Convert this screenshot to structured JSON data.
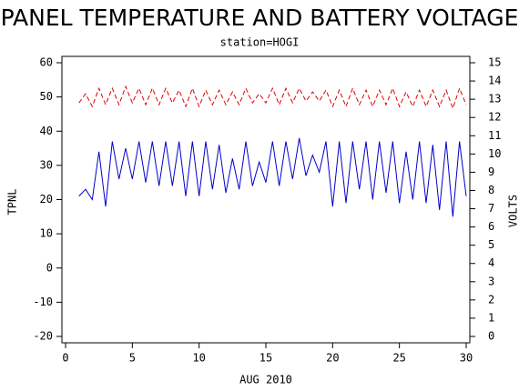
{
  "chart_data": {
    "type": "line",
    "title": "PANEL TEMPERATURE AND BATTERY VOLTAGE",
    "subtitle": "station=HOGI",
    "xlabel": "AUG 2010",
    "ylabel": "TPNL",
    "y2label": "VOLTS",
    "x": [
      1,
      1.5,
      2,
      2.5,
      3,
      3.5,
      4,
      4.5,
      5,
      5.5,
      6,
      6.5,
      7,
      7.5,
      8,
      8.5,
      9,
      9.5,
      10,
      10.5,
      11,
      11.5,
      12,
      12.5,
      13,
      13.5,
      14,
      14.5,
      15,
      15.5,
      16,
      16.5,
      17,
      17.5,
      18,
      18.5,
      19,
      19.5,
      20,
      20.5,
      21,
      21.5,
      22,
      22.5,
      23,
      23.5,
      24,
      24.5,
      25,
      25.5,
      26,
      26.5,
      27,
      27.5,
      28,
      28.5,
      29,
      29.5,
      30
    ],
    "series": [
      {
        "color": "#0000cc",
        "values": [
          21,
          23,
          20,
          34,
          18,
          37,
          26,
          35,
          26,
          37,
          25,
          37,
          24,
          37,
          24,
          37,
          21,
          37,
          21,
          37,
          23,
          36,
          22,
          32,
          23,
          37,
          24,
          31,
          25,
          37,
          24,
          37,
          26,
          38,
          27,
          33,
          28,
          37,
          18,
          37,
          19,
          37,
          23,
          37,
          20,
          37,
          22,
          37,
          19,
          34,
          20,
          37,
          19,
          36,
          17,
          37,
          15,
          37,
          21
        ]
      },
      {
        "color": "#dd0000",
        "dashed": true,
        "axis": "y2",
        "values": [
          12.8,
          13.3,
          12.6,
          13.6,
          12.7,
          13.6,
          12.7,
          13.7,
          12.8,
          13.6,
          12.7,
          13.6,
          12.7,
          13.6,
          12.8,
          13.5,
          12.6,
          13.6,
          12.6,
          13.5,
          12.7,
          13.5,
          12.7,
          13.4,
          12.7,
          13.6,
          12.8,
          13.3,
          12.8,
          13.6,
          12.7,
          13.6,
          12.8,
          13.6,
          12.9,
          13.4,
          12.9,
          13.5,
          12.6,
          13.5,
          12.6,
          13.6,
          12.7,
          13.5,
          12.6,
          13.5,
          12.7,
          13.6,
          12.6,
          13.4,
          12.6,
          13.5,
          12.6,
          13.5,
          12.6,
          13.5,
          12.5,
          13.6,
          12.7
        ]
      }
    ],
    "xlim": [
      0,
      30
    ],
    "xticks": [
      0,
      5,
      10,
      15,
      20,
      25,
      30
    ],
    "ylim": [
      -20,
      60
    ],
    "yticks": [
      -20,
      -10,
      0,
      10,
      20,
      30,
      40,
      50,
      60
    ],
    "y2lim": [
      0,
      15
    ],
    "y2ticks": [
      0,
      1,
      2,
      3,
      4,
      5,
      6,
      7,
      8,
      9,
      10,
      11,
      12,
      13,
      14,
      15
    ]
  }
}
